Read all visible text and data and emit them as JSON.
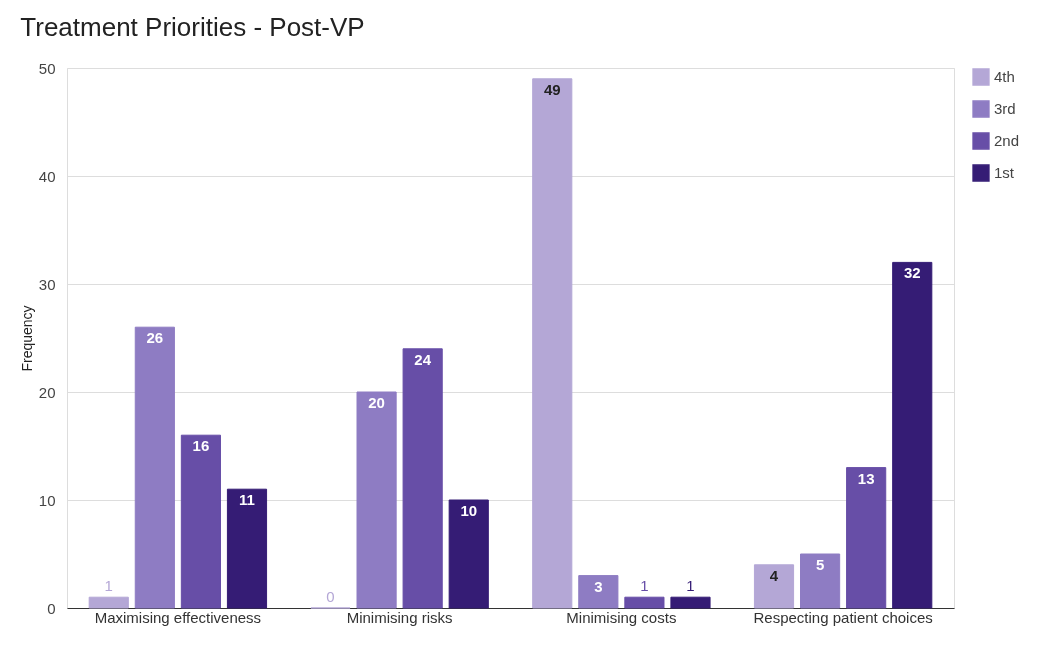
{
  "chart_data": {
    "type": "bar",
    "title": "Treatment Priorities - Post-VP",
    "ylabel": "Frequency",
    "categories": [
      "Maximising effectiveness",
      "Minimising risks",
      "Minimising costs",
      "Respecting patient choices"
    ],
    "series": [
      {
        "name": "4th",
        "color": "#b4a7d6",
        "values": [
          1,
          0,
          49,
          4
        ]
      },
      {
        "name": "3rd",
        "color": "#8e7cc3",
        "values": [
          26,
          20,
          3,
          5
        ]
      },
      {
        "name": "2nd",
        "color": "#674ea7",
        "values": [
          16,
          24,
          1,
          13
        ]
      },
      {
        "name": "1st",
        "color": "#351c75",
        "values": [
          11,
          10,
          1,
          32
        ]
      }
    ],
    "ylim": [
      0,
      50
    ],
    "yticks": [
      0,
      10,
      20,
      30,
      40,
      50
    ],
    "grid": "y",
    "legend": "top right",
    "data_labels": true
  }
}
